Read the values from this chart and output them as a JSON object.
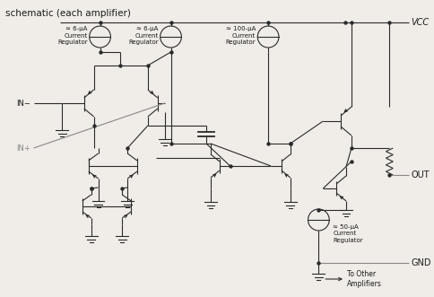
{
  "title": "schematic (each amplifier)",
  "bg_color": "#f0ede8",
  "line_color": "#2a2a2a",
  "gray_color": "#888888",
  "text_color": "#1a1a1a",
  "vcc": "VCC",
  "out": "OUT",
  "gnd": "GND",
  "in_minus": "IN−",
  "in_plus": "IN+",
  "to_other": "To Other\nAmplifiers",
  "cr1_label": "≈ 6-μA\nCurrent\nRegulator",
  "cr2_label": "≈ 6-μA\nCurrent\nRegulator",
  "cr3_label": "≈ 100-μA\nCurrent\nRegulator",
  "cr4_label": "≈ 50-μA\nCurrent\nRegulator"
}
